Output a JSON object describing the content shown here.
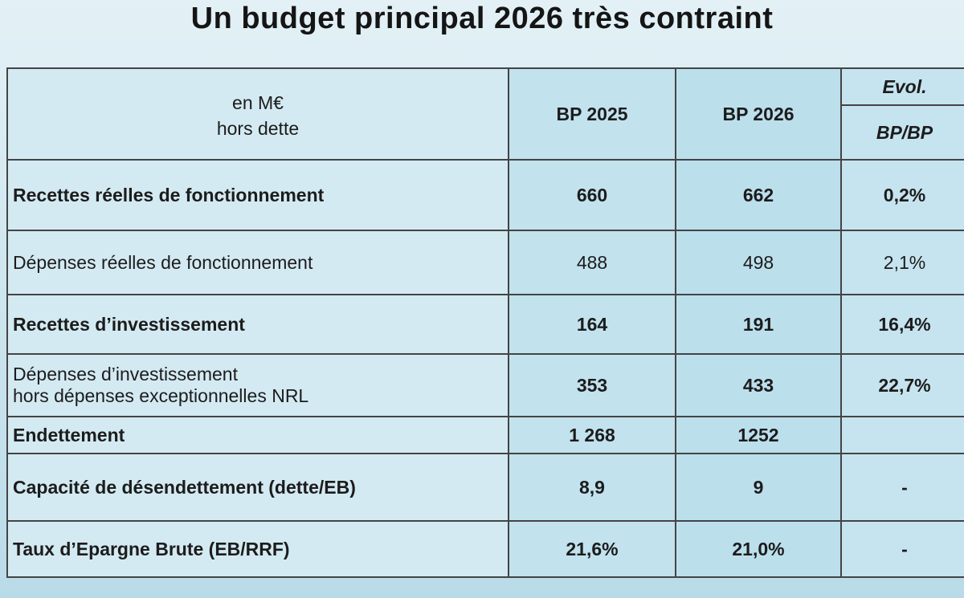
{
  "title": "Un budget principal 2026 très contraint",
  "header": {
    "unit_line1": "en M€",
    "unit_line2": "hors dette",
    "col_bp2025": "BP 2025",
    "col_bp2026": "BP 2026",
    "col_evol_top": "Evol.",
    "col_evol_bottom": "BP/BP"
  },
  "rows": [
    {
      "label": "Recettes réelles de fonctionnement",
      "bp2025": "660",
      "bp2026": "662",
      "evol": "0,2%"
    },
    {
      "label": "Dépenses réelles de fonctionnement",
      "bp2025": "488",
      "bp2026": "498",
      "evol": "2,1%"
    },
    {
      "label": "Recettes d’investissement",
      "bp2025": "164",
      "bp2026": "191",
      "evol": "16,4%"
    },
    {
      "label_line1": "Dépenses d’investissement",
      "label_line2": "hors dépenses exceptionnelles NRL",
      "bp2025": "353",
      "bp2026": "433",
      "evol": "22,7%"
    },
    {
      "label": "Endettement",
      "bp2025": "1 268",
      "bp2026": "1252",
      "evol": ""
    },
    {
      "label": "Capacité de désendettement (dette/EB)",
      "bp2025": "8,9",
      "bp2026": "9",
      "evol": "-"
    },
    {
      "label": "Taux d’Epargne Brute (EB/RRF)",
      "bp2025": "21,6%",
      "bp2026": "21,0%",
      "evol": "-"
    }
  ]
}
